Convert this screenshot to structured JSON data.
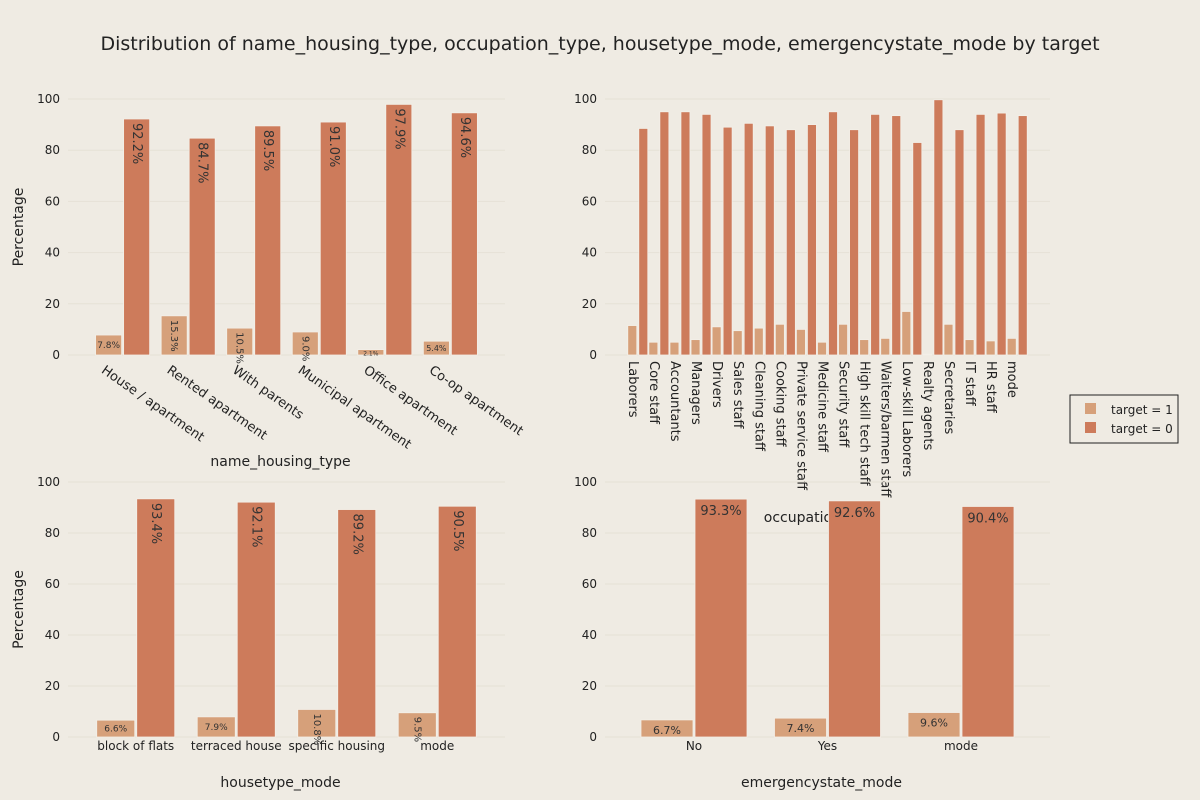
{
  "title": "Distribution of name_housing_type, occupation_type, housetype_mode, emergencystate_mode by target",
  "colors": {
    "target1": "#d6a07a",
    "target0": "#cd7b5b",
    "grid": "#e6e1d6"
  },
  "legend": {
    "items": [
      "target = 1",
      "target = 0"
    ]
  },
  "chart_data": [
    {
      "type": "bar",
      "xlabel": "name_housing_type",
      "ylabel": "Percentage",
      "ylim": [
        0,
        100
      ],
      "yticks": [
        0,
        20,
        40,
        60,
        80,
        100
      ],
      "categories": [
        "House / apartment",
        "Rented apartment",
        "With parents",
        "Municipal apartment",
        "Office apartment",
        "Co-op apartment"
      ],
      "series": [
        {
          "name": "target = 1",
          "values": [
            7.8,
            15.3,
            10.5,
            9.0,
            2.1,
            5.4
          ],
          "labels": [
            "7.8%",
            "15.3%",
            "10.5%",
            "9.0%",
            "2.1%",
            "5.4%"
          ]
        },
        {
          "name": "target = 0",
          "values": [
            92.2,
            84.7,
            89.5,
            91.0,
            97.9,
            94.6
          ],
          "labels": [
            "92.2%",
            "84.7%",
            "89.5%",
            "91.0%",
            "97.9%",
            "94.6%"
          ]
        }
      ]
    },
    {
      "type": "bar",
      "xlabel": "occupation_type",
      "ylabel": "",
      "ylim": [
        0,
        100
      ],
      "yticks": [
        0,
        20,
        40,
        60,
        80,
        100
      ],
      "categories": [
        "Laborers",
        "Core staff",
        "Accountants",
        "Managers",
        "Drivers",
        "Sales staff",
        "Cleaning staff",
        "Cooking staff",
        "Private service staff",
        "Medicine staff",
        "Security staff",
        "High skill tech staff",
        "Waiters/barmen staff",
        "Low-skill Laborers",
        "Realty agents",
        "Secretaries",
        "IT staff",
        "HR staff",
        "mode"
      ],
      "series": [
        {
          "name": "target = 1",
          "values": [
            11.5,
            5.0,
            5.0,
            6.0,
            11.0,
            9.5,
            10.5,
            12.0,
            10.0,
            5.0,
            12.0,
            6.0,
            6.5,
            17.0,
            0.3,
            12.0,
            6.0,
            5.5,
            6.5
          ]
        },
        {
          "name": "target = 0",
          "values": [
            88.5,
            95.0,
            95.0,
            94.0,
            89.0,
            90.5,
            89.5,
            88.0,
            90.0,
            95.0,
            88.0,
            94.0,
            93.5,
            83.0,
            99.7,
            88.0,
            94.0,
            94.5,
            93.5
          ]
        }
      ]
    },
    {
      "type": "bar",
      "xlabel": "housetype_mode",
      "ylabel": "Percentage",
      "ylim": [
        0,
        100
      ],
      "yticks": [
        0,
        20,
        40,
        60,
        80,
        100
      ],
      "categories": [
        "block of flats",
        "terraced house",
        "specific housing",
        "mode"
      ],
      "series": [
        {
          "name": "target = 1",
          "values": [
            6.6,
            7.9,
            10.8,
            9.5
          ],
          "labels": [
            "6.6%",
            "7.9%",
            "10.8%",
            "9.5%"
          ]
        },
        {
          "name": "target = 0",
          "values": [
            93.4,
            92.1,
            89.2,
            90.5
          ],
          "labels": [
            "93.4%",
            "92.1%",
            "89.2%",
            "90.5%"
          ]
        }
      ]
    },
    {
      "type": "bar",
      "xlabel": "emergencystate_mode",
      "ylabel": "",
      "ylim": [
        0,
        100
      ],
      "yticks": [
        0,
        20,
        40,
        60,
        80,
        100
      ],
      "categories": [
        "No",
        "Yes",
        "mode"
      ],
      "series": [
        {
          "name": "target = 1",
          "values": [
            6.7,
            7.4,
            9.6
          ],
          "labels": [
            "6.7%",
            "7.4%",
            "9.6%"
          ]
        },
        {
          "name": "target = 0",
          "values": [
            93.3,
            92.6,
            90.4
          ],
          "labels": [
            "93.3%",
            "92.6%",
            "90.4%"
          ]
        }
      ]
    }
  ]
}
